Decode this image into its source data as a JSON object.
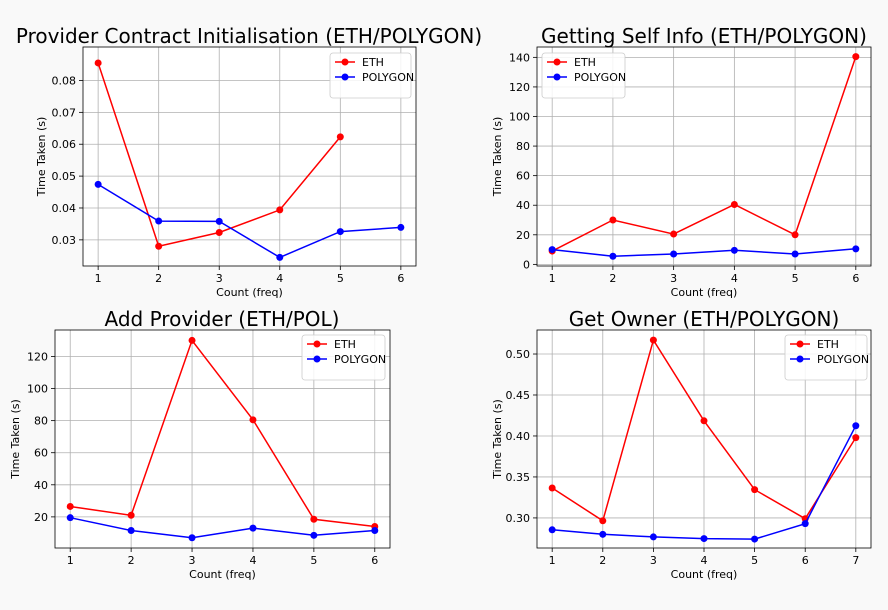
{
  "colors": {
    "eth": "#ff0000",
    "polygon": "#0000ff",
    "grid": "#b0b0b0",
    "background": "#ffffff"
  },
  "chart_data": [
    {
      "type": "line",
      "title": "Provider Contract Initialisation (ETH/POLYGON)",
      "xlabel": "Count (freq)",
      "ylabel": "Time Taken (s)",
      "grid": true,
      "legend": "top-right",
      "xlim": [
        0.75,
        6.25
      ],
      "ylim": [
        0.0218,
        0.0905
      ],
      "xticks": [
        1,
        2,
        3,
        4,
        5,
        6
      ],
      "yticks": [
        0.03,
        0.04,
        0.05,
        0.06,
        0.07,
        0.08
      ],
      "ytick_labels": [
        "0.03",
        "0.04",
        "0.05",
        "0.06",
        "0.07",
        "0.08"
      ],
      "series": [
        {
          "name": "ETH",
          "color": "#ff0000",
          "x": [
            1,
            2,
            3,
            4,
            5
          ],
          "y": [
            0.0855,
            0.028,
            0.0323,
            0.0394,
            0.0623
          ]
        },
        {
          "name": "POLYGON",
          "color": "#0000ff",
          "x": [
            1,
            2,
            3,
            4,
            5,
            6
          ],
          "y": [
            0.0474,
            0.0359,
            0.0358,
            0.0245,
            0.0326,
            0.0339
          ]
        }
      ]
    },
    {
      "type": "line",
      "title": "Getting Self Info (ETH/POLYGON)",
      "xlabel": "Count (freq)",
      "ylabel": "Time Taken (s)",
      "grid": true,
      "legend": "top-left",
      "xlim": [
        0.75,
        6.25
      ],
      "ylim": [
        -1.1,
        147
      ],
      "xticks": [
        1,
        2,
        3,
        4,
        5,
        6
      ],
      "yticks": [
        0,
        20,
        40,
        60,
        80,
        100,
        120,
        140
      ],
      "ytick_labels": [
        "0",
        "20",
        "40",
        "60",
        "80",
        "100",
        "120",
        "140"
      ],
      "series": [
        {
          "name": "ETH",
          "color": "#ff0000",
          "x": [
            1,
            2,
            3,
            4,
            5,
            6
          ],
          "y": [
            9,
            30,
            20.5,
            40.5,
            20,
            140.5
          ]
        },
        {
          "name": "POLYGON",
          "color": "#0000ff",
          "x": [
            1,
            2,
            3,
            4,
            5,
            6
          ],
          "y": [
            10,
            5.5,
            7,
            9.5,
            7,
            10.5
          ]
        }
      ]
    },
    {
      "type": "line",
      "title": "Add Provider (ETH/POL)",
      "xlabel": "Count (freq)",
      "ylabel": "Time Taken (s)",
      "grid": true,
      "legend": "top-right",
      "xlim": [
        0.75,
        6.25
      ],
      "ylim": [
        0.6,
        136.5
      ],
      "xticks": [
        1,
        2,
        3,
        4,
        5,
        6
      ],
      "yticks": [
        20,
        40,
        60,
        80,
        100,
        120
      ],
      "ytick_labels": [
        "20",
        "40",
        "60",
        "80",
        "100",
        "120"
      ],
      "series": [
        {
          "name": "ETH",
          "color": "#ff0000",
          "x": [
            1,
            2,
            3,
            4,
            5,
            6
          ],
          "y": [
            26.5,
            21,
            130,
            80.5,
            18.5,
            14
          ]
        },
        {
          "name": "POLYGON",
          "color": "#0000ff",
          "x": [
            1,
            2,
            3,
            4,
            5,
            6
          ],
          "y": [
            19.5,
            11.5,
            7,
            13,
            8.5,
            11.5
          ]
        }
      ]
    },
    {
      "type": "line",
      "title": "Get Owner (ETH/POLYGON)",
      "xlabel": "Count (freq)",
      "ylabel": "Time Taken (s)",
      "grid": true,
      "legend": "top-right",
      "xlim": [
        0.7,
        7.3
      ],
      "ylim": [
        0.2633,
        0.5293
      ],
      "xticks": [
        1,
        2,
        3,
        4,
        5,
        6,
        7
      ],
      "yticks": [
        0.3,
        0.35,
        0.4,
        0.45,
        0.5
      ],
      "ytick_labels": [
        "0.30",
        "0.35",
        "0.40",
        "0.45",
        "0.50"
      ],
      "series": [
        {
          "name": "ETH",
          "color": "#ff0000",
          "x": [
            1,
            2,
            3,
            4,
            5,
            6,
            7
          ],
          "y": [
            0.3365,
            0.2965,
            0.517,
            0.4185,
            0.3345,
            0.299,
            0.398
          ]
        },
        {
          "name": "POLYGON",
          "color": "#0000ff",
          "x": [
            1,
            2,
            3,
            4,
            5,
            6,
            7
          ],
          "y": [
            0.2855,
            0.28,
            0.2768,
            0.2748,
            0.2742,
            0.293,
            0.4125
          ]
        }
      ]
    }
  ]
}
